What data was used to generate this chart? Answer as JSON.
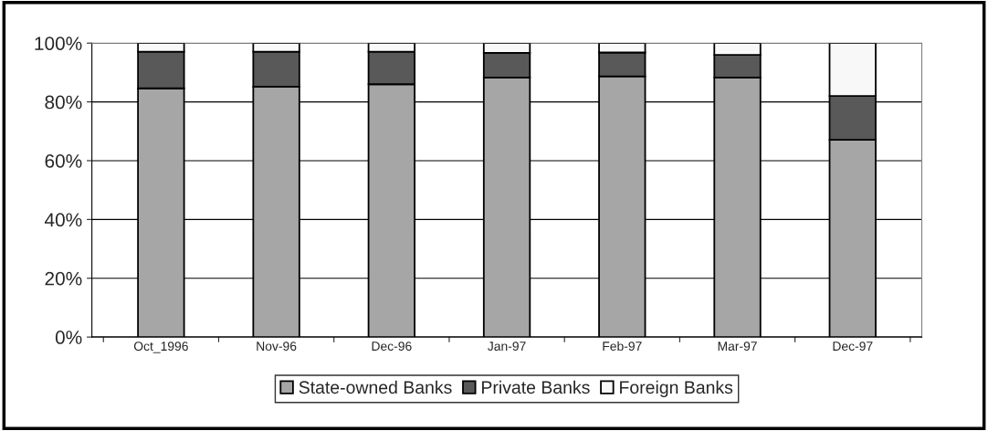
{
  "chart_data": {
    "type": "bar",
    "stacked": true,
    "categories": [
      "Oct_1996",
      "Nov-96",
      "Dec-96",
      "Jan-97",
      "Feb-97",
      "Mar-97",
      "Dec-97"
    ],
    "series": [
      {
        "name": "State-owned Banks",
        "color": "#a6a6a6",
        "values": [
          84.6,
          85.2,
          86.0,
          88.3,
          88.7,
          88.3,
          67.1
        ]
      },
      {
        "name": "Private Banks",
        "color": "#595959",
        "values": [
          12.5,
          11.9,
          11.1,
          8.4,
          8.1,
          7.7,
          14.9
        ]
      },
      {
        "name": "Foreign Banks",
        "color": "#f8f8f8",
        "values": [
          2.9,
          2.9,
          2.9,
          3.3,
          3.2,
          4.0,
          18.0
        ]
      }
    ],
    "ylim": [
      0,
      100
    ],
    "yticks": [
      {
        "value": 0,
        "label": "0%"
      },
      {
        "value": 20,
        "label": "20%"
      },
      {
        "value": 40,
        "label": "40%"
      },
      {
        "value": 60,
        "label": "60%"
      },
      {
        "value": 80,
        "label": "80%"
      },
      {
        "value": 100,
        "label": "100%"
      }
    ],
    "grid": "y",
    "legend": "bottom"
  }
}
